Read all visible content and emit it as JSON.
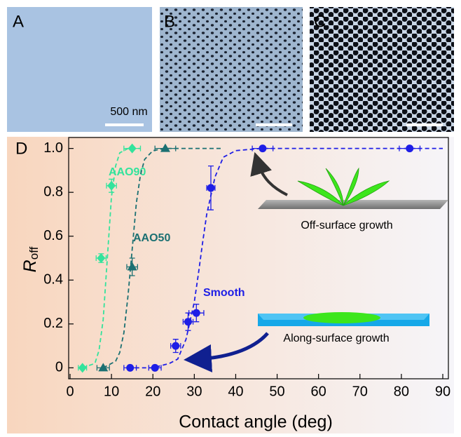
{
  "panels": {
    "a": "A",
    "b": "B",
    "c": "C",
    "scale_bar": "500 nm"
  },
  "chart_data": {
    "type": "scatter",
    "panel_label": "D",
    "xlabel": "Contact angle (deg)",
    "ylabel": {
      "main": "R",
      "sub": "off"
    },
    "xlim": [
      0,
      90
    ],
    "ylim": [
      -0.05,
      1.05
    ],
    "xticks": [
      0,
      10,
      20,
      30,
      40,
      50,
      60,
      70,
      80,
      90
    ],
    "yticks": [
      0,
      0.2,
      0.4,
      0.6,
      0.8,
      {
        "value": 1,
        "label": "1.0"
      }
    ],
    "series": [
      {
        "name": "AAO90",
        "color": "#33e39c",
        "marker": "diamond",
        "x": [
          3,
          7.5,
          10,
          15
        ],
        "values": [
          0,
          0.5,
          0.83,
          1
        ],
        "xerr": [
          1,
          1.2,
          1.2,
          2
        ],
        "yerr": [
          null,
          0.02,
          0.03,
          null
        ],
        "fit_x": [
          3,
          6,
          7,
          8,
          9,
          10,
          11,
          12,
          14,
          17
        ],
        "fit_values": [
          0,
          0.02,
          0.08,
          0.22,
          0.5,
          0.78,
          0.92,
          0.98,
          1,
          1
        ]
      },
      {
        "name": "AAO50",
        "color": "#1b7072",
        "marker": "triangle",
        "x": [
          8,
          15,
          23
        ],
        "values": [
          0,
          0.46,
          1
        ],
        "xerr": [
          1.5,
          1.3,
          2.5
        ],
        "yerr": [
          null,
          0.04,
          null
        ],
        "fit_x": [
          8,
          11,
          12,
          13,
          14,
          15,
          16,
          17,
          18,
          20,
          23,
          37
        ],
        "fit_values": [
          0,
          0.03,
          0.07,
          0.16,
          0.33,
          0.54,
          0.75,
          0.88,
          0.95,
          0.99,
          1,
          1
        ]
      },
      {
        "name": "Smooth",
        "color": "#1e1ee6",
        "marker": "circle",
        "x": [
          14.5,
          20.5,
          25.5,
          28.5,
          30.5,
          34,
          46.5,
          82
        ],
        "values": [
          0,
          0,
          0.1,
          0.21,
          0.25,
          0.82,
          1,
          1
        ],
        "xerr": [
          1.5,
          1.5,
          1.2,
          1.2,
          1.8,
          1,
          2.5,
          2.5
        ],
        "yerr": [
          null,
          null,
          0.03,
          0.04,
          0.04,
          0.1,
          null,
          null
        ],
        "fit_x": [
          14,
          20,
          24,
          26,
          28,
          30,
          31,
          32,
          33,
          35,
          37,
          40,
          46,
          90
        ],
        "fit_values": [
          0,
          0,
          0.02,
          0.04,
          0.13,
          0.3,
          0.43,
          0.57,
          0.7,
          0.87,
          0.96,
          0.99,
          1,
          1
        ]
      }
    ],
    "annotations": {
      "off": "Off-surface growth",
      "along": "Along-surface growth"
    }
  }
}
